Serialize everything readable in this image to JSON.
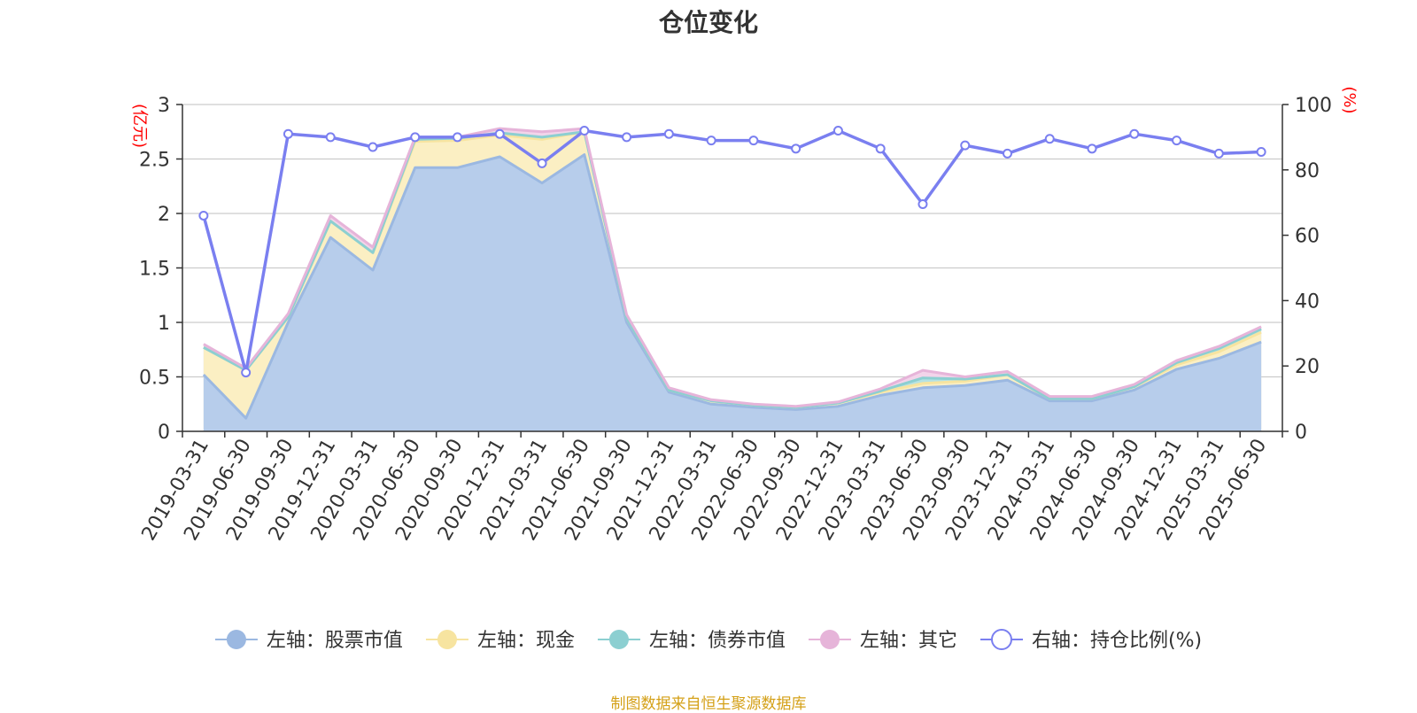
{
  "chart_data": {
    "type": "area",
    "title": "仓位变化",
    "ylabel_left": "(亿元)",
    "ylabel_right": "(%)",
    "ylim_left": [
      0,
      3
    ],
    "ylim_right": [
      0,
      100
    ],
    "y_ticks_left": [
      "0",
      "0.5",
      "1",
      "1.5",
      "2",
      "2.5",
      "3"
    ],
    "y_ticks_right": [
      "0",
      "20",
      "40",
      "60",
      "80",
      "100"
    ],
    "x": [
      "2019-03-31",
      "2019-06-30",
      "2019-09-30",
      "2019-12-31",
      "2020-03-31",
      "2020-06-30",
      "2020-09-30",
      "2020-12-31",
      "2021-03-31",
      "2021-06-30",
      "2021-09-30",
      "2021-12-31",
      "2022-03-31",
      "2022-06-30",
      "2022-09-30",
      "2022-12-31",
      "2023-03-31",
      "2023-06-30",
      "2023-09-30",
      "2023-12-31",
      "2024-03-31",
      "2024-06-30",
      "2024-09-30",
      "2024-12-31",
      "2025-03-31",
      "2025-06-30"
    ],
    "series": [
      {
        "name": "左轴：股票市值",
        "axis": "left",
        "stacked": true,
        "color": "#9bb8e1",
        "fill": "#b7cdeb",
        "values": [
          0.52,
          0.12,
          1.0,
          1.78,
          1.48,
          2.42,
          2.42,
          2.52,
          2.28,
          2.54,
          1.0,
          0.36,
          0.25,
          0.22,
          0.2,
          0.23,
          0.33,
          0.4,
          0.42,
          0.47,
          0.28,
          0.28,
          0.38,
          0.57,
          0.67,
          0.82
        ]
      },
      {
        "name": "左轴：现金",
        "axis": "left",
        "stacked": true,
        "color": "#f7e4a0",
        "fill": "#fbefc3",
        "values": [
          0.25,
          0.44,
          0.05,
          0.15,
          0.16,
          0.24,
          0.25,
          0.2,
          0.4,
          0.21,
          0.04,
          0.02,
          0.03,
          0.02,
          0.02,
          0.03,
          0.03,
          0.04,
          0.04,
          0.05,
          0.02,
          0.02,
          0.03,
          0.04,
          0.06,
          0.09
        ]
      },
      {
        "name": "左轴：债券市值",
        "axis": "left",
        "stacked": true,
        "color": "#8ccfd1",
        "fill": "#b5e2e3",
        "values": [
          0.0,
          0.0,
          0.0,
          0.0,
          0.0,
          0.02,
          0.02,
          0.02,
          0.02,
          0.0,
          0.0,
          0.0,
          0.0,
          0.0,
          0.0,
          0.0,
          0.01,
          0.05,
          0.02,
          0.0,
          0.0,
          0.0,
          0.0,
          0.02,
          0.03,
          0.03
        ]
      },
      {
        "name": "左轴：其它",
        "axis": "left",
        "stacked": true,
        "color": "#e6b4d9",
        "fill": "#f2d4ea",
        "values": [
          0.03,
          0.02,
          0.03,
          0.05,
          0.05,
          0.02,
          0.01,
          0.04,
          0.05,
          0.03,
          0.03,
          0.02,
          0.01,
          0.01,
          0.01,
          0.01,
          0.02,
          0.07,
          0.02,
          0.03,
          0.02,
          0.02,
          0.02,
          0.02,
          0.02,
          0.02
        ]
      },
      {
        "name": "右轴：持仓比例(%)",
        "axis": "right",
        "stacked": false,
        "color": "#7a7ff0",
        "values": [
          66,
          18,
          91,
          90,
          87,
          90,
          90,
          91,
          82,
          92,
          90,
          91,
          89,
          89,
          86.5,
          92,
          86.5,
          69.5,
          87.5,
          85,
          89.5,
          86.5,
          91,
          89,
          85,
          85.5
        ]
      }
    ],
    "legend_position": "bottom",
    "grid": true
  },
  "footer": {
    "source": "制图数据来自恒生聚源数据库"
  }
}
